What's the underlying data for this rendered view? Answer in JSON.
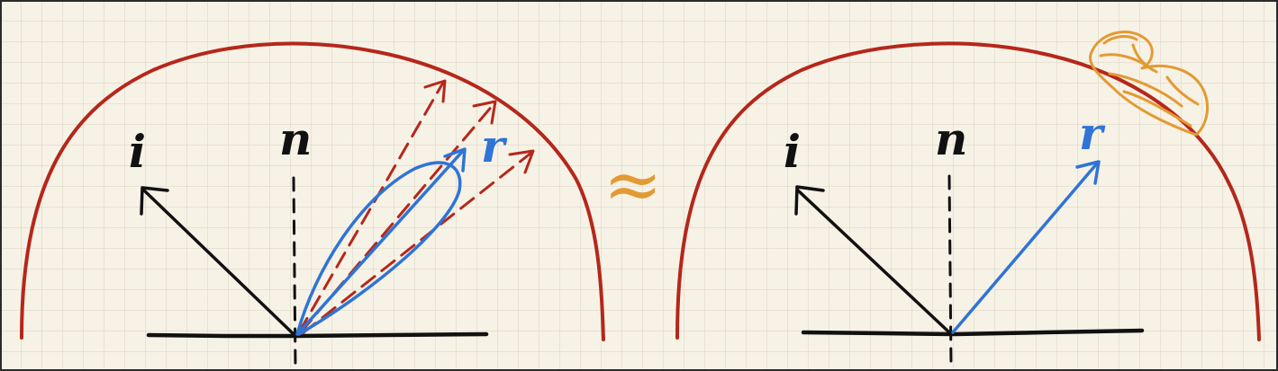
{
  "colors": {
    "background": "#f7f2e6",
    "grid": "#d9d3c4",
    "hemisphere": "#b5271b",
    "ink": "#111111",
    "reflect": "#2f74d6",
    "approx": "#e39a33",
    "highlight": "#e39a33"
  },
  "left_panel": {
    "incident_label": "i",
    "normal_label": "n",
    "reflect_label": "r"
  },
  "approx_symbol": "≈",
  "right_panel": {
    "incident_label": "i",
    "normal_label": "n",
    "reflect_label": "r"
  }
}
